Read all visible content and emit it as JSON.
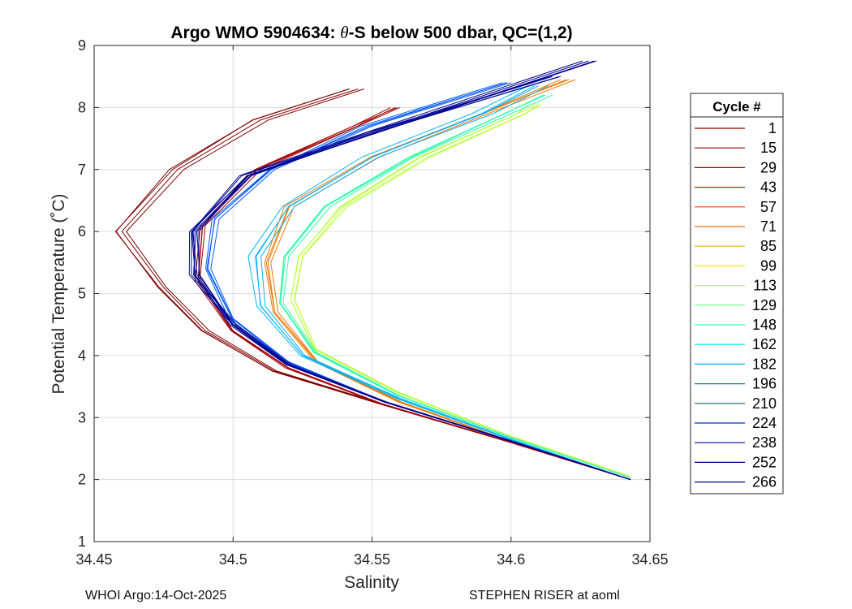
{
  "chart_data": {
    "type": "line",
    "title_prefix": "Argo WMO 5904634: ",
    "title_theta": "θ",
    "title_suffix": "-S below 500 dbar,  QC=(1,2)",
    "xlabel": "Salinity",
    "ylabel": "Potential Temperature (˚C)",
    "xlim": [
      34.45,
      34.65
    ],
    "ylim": [
      1,
      9
    ],
    "xticks": [
      "34.45",
      "34.5",
      "34.55",
      "34.6",
      "34.65"
    ],
    "yticks": [
      "1",
      "2",
      "3",
      "4",
      "5",
      "6",
      "7",
      "8",
      "9"
    ],
    "grid": true,
    "legend": {
      "title": "Cycle #",
      "placement": "right",
      "entries": [
        {
          "label": "1",
          "color": "#800000"
        },
        {
          "label": "15",
          "color": "#8f0000"
        },
        {
          "label": "29",
          "color": "#a30000"
        },
        {
          "label": "43",
          "color": "#cc1a00"
        },
        {
          "label": "57",
          "color": "#e34a00"
        },
        {
          "label": "71",
          "color": "#f07800"
        },
        {
          "label": "85",
          "color": "#fba800"
        },
        {
          "label": "99",
          "color": "#ffe600"
        },
        {
          "label": "113",
          "color": "#baff3a"
        },
        {
          "label": "129",
          "color": "#6cff74"
        },
        {
          "label": "148",
          "color": "#2cffaa"
        },
        {
          "label": "162",
          "color": "#00e6e6"
        },
        {
          "label": "182",
          "color": "#00b4ff"
        },
        {
          "label": "196",
          "color": "#0080c0"
        },
        {
          "label": "210",
          "color": "#0058ff"
        },
        {
          "label": "224",
          "color": "#0030d0"
        },
        {
          "label": "238",
          "color": "#00129b"
        },
        {
          "label": "252",
          "color": "#000090"
        },
        {
          "label": "266",
          "color": "#00008f"
        }
      ]
    },
    "representative_profiles": [
      {
        "cycle": "1",
        "color": "#800000",
        "points": [
          [
            34.643,
            2.0
          ],
          [
            34.6,
            2.6
          ],
          [
            34.555,
            3.2
          ],
          [
            34.515,
            3.75
          ],
          [
            34.49,
            4.4
          ],
          [
            34.475,
            5.1
          ],
          [
            34.46,
            6.0
          ],
          [
            34.48,
            7.0
          ],
          [
            34.51,
            7.8
          ],
          [
            34.545,
            8.3
          ]
        ]
      },
      {
        "cycle": "29",
        "color": "#a30000",
        "points": [
          [
            34.643,
            2.0
          ],
          [
            34.6,
            2.6
          ],
          [
            34.555,
            3.2
          ],
          [
            34.52,
            3.8
          ],
          [
            34.5,
            4.4
          ],
          [
            34.488,
            5.2
          ],
          [
            34.49,
            6.1
          ],
          [
            34.51,
            7.0
          ],
          [
            34.545,
            7.7
          ],
          [
            34.56,
            8.0
          ]
        ]
      },
      {
        "cycle": "71",
        "color": "#f07800",
        "points": [
          [
            34.643,
            2.0
          ],
          [
            34.6,
            2.62
          ],
          [
            34.56,
            3.25
          ],
          [
            34.53,
            3.9
          ],
          [
            34.515,
            4.7
          ],
          [
            34.512,
            5.5
          ],
          [
            34.52,
            6.4
          ],
          [
            34.55,
            7.2
          ],
          [
            34.59,
            7.9
          ],
          [
            34.62,
            8.45
          ]
        ]
      },
      {
        "cycle": "113",
        "color": "#baff3a",
        "points": [
          [
            34.643,
            2.05
          ],
          [
            34.6,
            2.7
          ],
          [
            34.56,
            3.4
          ],
          [
            34.53,
            4.1
          ],
          [
            34.522,
            4.9
          ],
          [
            34.525,
            5.6
          ],
          [
            34.54,
            6.4
          ],
          [
            34.57,
            7.2
          ],
          [
            34.605,
            7.9
          ],
          [
            34.61,
            8.05
          ]
        ]
      },
      {
        "cycle": "148",
        "color": "#2cffaa",
        "points": [
          [
            34.643,
            2.03
          ],
          [
            34.6,
            2.68
          ],
          [
            34.56,
            3.35
          ],
          [
            34.53,
            4.05
          ],
          [
            34.518,
            4.85
          ],
          [
            34.52,
            5.6
          ],
          [
            34.535,
            6.4
          ],
          [
            34.565,
            7.2
          ],
          [
            34.6,
            7.9
          ],
          [
            34.615,
            8.2
          ]
        ]
      },
      {
        "cycle": "182",
        "color": "#00b4ff",
        "points": [
          [
            34.643,
            2.0
          ],
          [
            34.6,
            2.65
          ],
          [
            34.56,
            3.3
          ],
          [
            34.525,
            4.0
          ],
          [
            34.51,
            4.8
          ],
          [
            34.508,
            5.6
          ],
          [
            34.52,
            6.4
          ],
          [
            34.55,
            7.2
          ],
          [
            34.59,
            7.9
          ],
          [
            34.61,
            8.35
          ]
        ]
      },
      {
        "cycle": "210",
        "color": "#0058ff",
        "points": [
          [
            34.643,
            2.0
          ],
          [
            34.6,
            2.63
          ],
          [
            34.555,
            3.25
          ],
          [
            34.52,
            3.9
          ],
          [
            34.5,
            4.6
          ],
          [
            34.492,
            5.4
          ],
          [
            34.495,
            6.2
          ],
          [
            34.515,
            7.0
          ],
          [
            34.55,
            7.7
          ],
          [
            34.6,
            8.4
          ]
        ]
      },
      {
        "cycle": "238",
        "color": "#00129b",
        "points": [
          [
            34.643,
            2.0
          ],
          [
            34.6,
            2.62
          ],
          [
            34.555,
            3.25
          ],
          [
            34.52,
            3.85
          ],
          [
            34.5,
            4.5
          ],
          [
            34.485,
            5.3
          ],
          [
            34.485,
            6.0
          ],
          [
            34.505,
            6.9
          ],
          [
            34.55,
            7.6
          ],
          [
            34.615,
            8.5
          ]
        ]
      },
      {
        "cycle": "266",
        "color": "#00008f",
        "points": [
          [
            34.643,
            2.0
          ],
          [
            34.6,
            2.62
          ],
          [
            34.555,
            3.25
          ],
          [
            34.52,
            3.85
          ],
          [
            34.5,
            4.5
          ],
          [
            34.488,
            5.3
          ],
          [
            34.487,
            6.0
          ],
          [
            34.505,
            6.9
          ],
          [
            34.555,
            7.65
          ],
          [
            34.63,
            8.75
          ]
        ]
      }
    ]
  },
  "footer": {
    "left": "WHOI Argo:14-Oct-2025",
    "right": "STEPHEN RISER at aoml"
  }
}
